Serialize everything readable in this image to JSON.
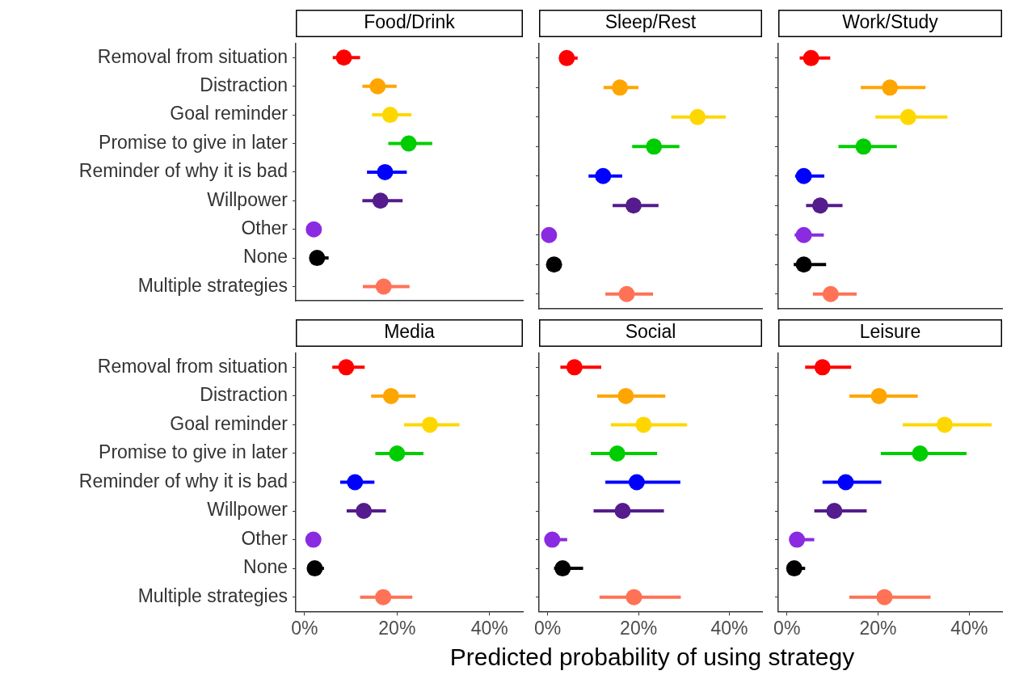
{
  "chart_data": [
    {
      "type": "scatter",
      "orientation": "horizontal",
      "marker": "circle",
      "title": "Food/Drink",
      "tick_labels": "y",
      "categories": [
        "Removal from situation",
        "Distraction",
        "Goal reminder",
        "Promise to give in later",
        "Reminder of why it is bad",
        "Willpower",
        "Other",
        "None",
        "Multiple strategies"
      ],
      "values": [
        8.5,
        15.8,
        18.5,
        22.5,
        17.4,
        16.4,
        2.0,
        2.7,
        17.1
      ],
      "errors": [
        [
          6.1,
          12.0
        ],
        [
          12.5,
          19.9
        ],
        [
          14.6,
          23.1
        ],
        [
          18.1,
          27.6
        ],
        [
          13.5,
          22.1
        ],
        [
          12.5,
          21.2
        ],
        null,
        [
          2.7,
          5.2
        ],
        [
          12.6,
          22.7
        ]
      ],
      "colors": [
        "#ff0000",
        "#ffa500",
        "#ffd700",
        "#00cd00",
        "#0000ff",
        "#541c8c",
        "#8a2be2",
        "#000000",
        "#ff7256"
      ],
      "xlim": [
        -1.9,
        47.2
      ]
    },
    {
      "type": "scatter",
      "orientation": "horizontal",
      "marker": "circle",
      "title": "Sleep/Rest",
      "tick_labels": false,
      "categories": [
        null,
        null,
        null,
        null,
        null,
        null,
        null,
        null,
        null
      ],
      "values": [
        4.2,
        15.9,
        33.0,
        23.4,
        12.2,
        18.9,
        0.3,
        1.4,
        17.4
      ],
      "errors": [
        [
          4.2,
          6.6
        ],
        [
          12.3,
          20.0
        ],
        [
          27.2,
          39.2
        ],
        [
          18.6,
          29.0
        ],
        [
          9.0,
          16.4
        ],
        [
          14.3,
          24.4
        ],
        null,
        null,
        [
          12.7,
          23.2
        ]
      ],
      "colors": [
        "#ff0000",
        "#ffa500",
        "#ffd700",
        "#00cd00",
        "#0000ff",
        "#541c8c",
        "#8a2be2",
        "#000000",
        "#ff7256"
      ],
      "xlim": [
        -1.9,
        47.2
      ]
    },
    {
      "type": "scatter",
      "orientation": "horizontal",
      "marker": "circle",
      "title": "Work/Study",
      "tick_labels": false,
      "categories": [
        null,
        null,
        null,
        null,
        null,
        null,
        null,
        null,
        null
      ],
      "values": [
        5.3,
        22.6,
        26.6,
        16.8,
        3.7,
        7.3,
        3.7,
        3.7,
        9.6
      ],
      "errors": [
        [
          2.8,
          9.5
        ],
        [
          16.2,
          30.4
        ],
        [
          19.4,
          35.2
        ],
        [
          11.3,
          24.1
        ],
        [
          1.8,
          8.2
        ],
        [
          4.2,
          12.2
        ],
        [
          1.7,
          8.1
        ],
        [
          1.5,
          8.6
        ],
        [
          5.7,
          15.3
        ]
      ],
      "colors": [
        "#ff0000",
        "#ffa500",
        "#ffd700",
        "#00cd00",
        "#0000ff",
        "#541c8c",
        "#8a2be2",
        "#000000",
        "#ff7256"
      ],
      "xlim": [
        -1.9,
        47.2
      ]
    },
    {
      "type": "scatter",
      "orientation": "horizontal",
      "marker": "circle",
      "title": "Media",
      "categories": [
        "Removal from situation",
        "Distraction",
        "Goal reminder",
        "Promise to give in later",
        "Reminder of why it is bad",
        "Willpower",
        "Other",
        "None",
        "Multiple strategies"
      ],
      "values": [
        9.0,
        18.7,
        27.1,
        20.0,
        10.9,
        12.8,
        1.9,
        2.2,
        17.0
      ],
      "errors": [
        [
          6.0,
          13.0
        ],
        [
          14.4,
          24.0
        ],
        [
          21.5,
          33.5
        ],
        [
          15.3,
          25.7
        ],
        [
          7.7,
          15.1
        ],
        [
          9.1,
          17.6
        ],
        null,
        [
          2.2,
          4.2
        ],
        [
          12.0,
          23.3
        ]
      ],
      "colors": [
        "#ff0000",
        "#ffa500",
        "#ffd700",
        "#00cd00",
        "#0000ff",
        "#541c8c",
        "#8a2be2",
        "#000000",
        "#ff7256"
      ],
      "xlim": [
        -1.9,
        47.2
      ],
      "xticks": [
        {
          "value": 0,
          "label": "0%"
        },
        {
          "value": 20,
          "label": "20%"
        },
        {
          "value": 40,
          "label": "40%"
        }
      ]
    },
    {
      "type": "scatter",
      "orientation": "horizontal",
      "marker": "circle",
      "title": "Social",
      "tick_labels": "x",
      "xlabel": "Predicted probability of using strategy",
      "categories": [
        null,
        null,
        null,
        null,
        null,
        null,
        null,
        null,
        null
      ],
      "values": [
        5.9,
        17.2,
        21.1,
        15.3,
        19.6,
        16.5,
        1.0,
        3.3,
        19.0
      ],
      "errors": [
        [
          2.8,
          11.8
        ],
        [
          10.9,
          25.9
        ],
        [
          13.9,
          30.7
        ],
        [
          9.5,
          24.1
        ],
        [
          12.7,
          29.2
        ],
        [
          10.1,
          25.6
        ],
        [
          1.0,
          4.3
        ],
        [
          1.4,
          7.8
        ],
        [
          11.4,
          29.3
        ]
      ],
      "colors": [
        "#ff0000",
        "#ffa500",
        "#ffd700",
        "#00cd00",
        "#0000ff",
        "#541c8c",
        "#8a2be2",
        "#000000",
        "#ff7256"
      ],
      "xlim": [
        -1.9,
        47.2
      ],
      "xticks": [
        {
          "value": 0,
          "label": "0%"
        },
        {
          "value": 20,
          "label": "20%"
        },
        {
          "value": 40,
          "label": "40%"
        }
      ]
    },
    {
      "type": "scatter",
      "orientation": "horizontal",
      "marker": "circle",
      "title": "Leisure",
      "tick_labels": "x",
      "categories": [
        null,
        null,
        null,
        null,
        null,
        null,
        null,
        null,
        null
      ],
      "values": [
        7.8,
        20.2,
        34.6,
        29.2,
        12.9,
        10.4,
        2.2,
        1.6,
        21.4
      ],
      "errors": [
        [
          4.0,
          14.1
        ],
        [
          13.7,
          28.7
        ],
        [
          25.4,
          44.9
        ],
        [
          20.6,
          39.4
        ],
        [
          7.8,
          20.7
        ],
        [
          6.0,
          17.5
        ],
        [
          2.2,
          6.0
        ],
        [
          1.6,
          4.0
        ],
        [
          13.7,
          31.5
        ]
      ],
      "colors": [
        "#ff0000",
        "#ffa500",
        "#ffd700",
        "#00cd00",
        "#0000ff",
        "#541c8c",
        "#8a2be2",
        "#000000",
        "#ff7256"
      ],
      "xlim": [
        -1.9,
        47.2
      ],
      "xticks": [
        {
          "value": 0,
          "label": "0%"
        },
        {
          "value": 20,
          "label": "20%"
        },
        {
          "value": 40,
          "label": "40%"
        }
      ]
    }
  ]
}
